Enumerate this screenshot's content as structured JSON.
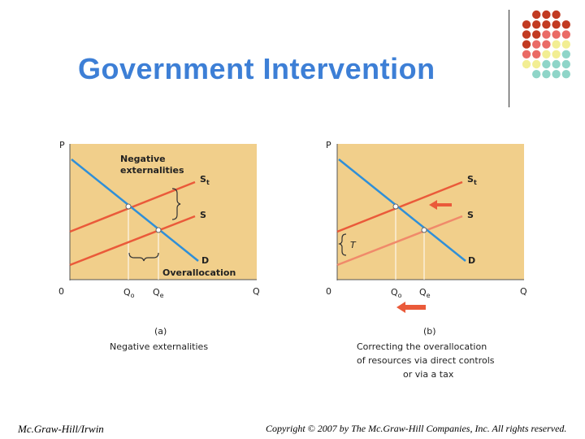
{
  "slide": {
    "title": "Government Intervention",
    "footer_left": "Mc.Graw-Hill/Irwin",
    "footer_right": "Copyright © 2007 by The Mc.Graw-Hill Companies, Inc. All rights reserved."
  },
  "colors": {
    "title": "#3d7fd6",
    "panel_fill": "#f1cf8b",
    "supply_line": "#ea5a3a",
    "supply_light": "#f08a6a",
    "demand_line": "#2f8fd8",
    "dot_red": "#c23b22",
    "dot_pink": "#ea6b66",
    "dot_yellow": "#f2ee93",
    "dot_teal": "#8fd5c8"
  },
  "panel_a": {
    "p_label": "P",
    "origin": "0",
    "q_label": "Q",
    "qo_label": "Q",
    "qo_sub": "o",
    "qe_label": "Q",
    "qe_sub": "e",
    "st_label": "S",
    "st_sub": "t",
    "s_label": "S",
    "d_label": "D",
    "neg_line1": "Negative",
    "neg_line2": "externalities",
    "overallocation": "Overallocation",
    "caption_letter": "(a)",
    "caption": "Negative externalities"
  },
  "panel_b": {
    "p_label": "P",
    "origin": "0",
    "q_label": "Q",
    "qo_label": "Q",
    "qo_sub": "o",
    "qe_label": "Q",
    "qe_sub": "e",
    "st_label": "S",
    "st_sub": "t",
    "s_label": "S",
    "d_label": "D",
    "t_label": "T",
    "caption_letter": "(b)",
    "caption_line1": "Correcting the overallocation",
    "caption_line2": "of resources via direct controls",
    "caption_line3": "or via a tax"
  }
}
